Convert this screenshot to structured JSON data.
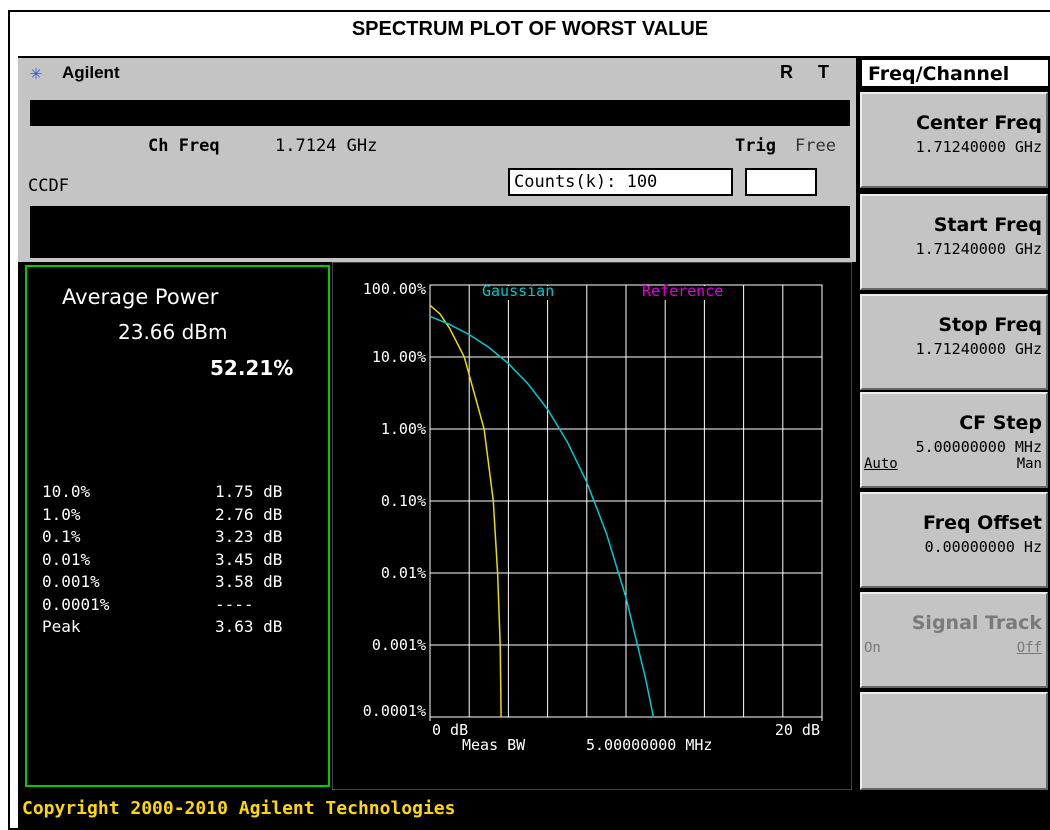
{
  "header": {
    "title": "SPECTRUM PLOT OF WORST VALUE"
  },
  "top_bar": {
    "brand": "Agilent",
    "indicators": [
      "R",
      "T"
    ]
  },
  "status": {
    "ch_freq_label": "Ch Freq",
    "ch_freq": "1.7124 GHz",
    "trig_label": "Trig",
    "trig": "Free",
    "mode": "CCDF",
    "counts": "Counts(k): 100"
  },
  "results": {
    "avg_power_label": "Average Power",
    "avg_power": "23.66 dBm",
    "avg_pct": "52.21%",
    "rows": [
      [
        "10.0%",
        "1.75 dB"
      ],
      [
        "1.0%",
        "2.76 dB"
      ],
      [
        "0.1%",
        "3.23 dB"
      ],
      [
        "0.01%",
        "3.45 dB"
      ],
      [
        "0.001%",
        "3.58 dB"
      ],
      [
        "0.0001%",
        "----"
      ],
      [
        "Peak",
        "3.63 dB"
      ]
    ]
  },
  "chart_data": {
    "type": "line",
    "log_y": true,
    "grid": true,
    "grid_divisions": 10,
    "xlim": [
      0,
      20
    ],
    "xticks": [
      {
        "value": 0,
        "label": "0 dB"
      },
      {
        "value": 20,
        "label": "20 dB"
      }
    ],
    "ylim": [
      0.0001,
      100
    ],
    "yticks": [
      {
        "value": 100,
        "label": "100.00%"
      },
      {
        "value": 10,
        "label": "10.00%"
      },
      {
        "value": 1,
        "label": "1.00%"
      },
      {
        "value": 0.1,
        "label": "0.10%"
      },
      {
        "value": 0.01,
        "label": "0.01%"
      },
      {
        "value": 0.001,
        "label": "0.001%"
      },
      {
        "value": 0.0001,
        "label": "0.0001%"
      }
    ],
    "series": [
      {
        "color": "#e8dc00",
        "x": [
          0,
          0.5,
          1,
          1.75,
          2.76,
          3.23,
          3.45,
          3.58,
          3.63
        ],
        "values": [
          52.21,
          40,
          25,
          10,
          1,
          0.1,
          0.01,
          0.001,
          0.0001
        ]
      },
      {
        "name": "Gaussian",
        "color": "#00c8d0",
        "x": [
          0,
          1,
          2,
          3,
          4,
          5,
          6,
          7,
          8,
          9,
          10,
          11,
          11.4
        ],
        "values": [
          36.79,
          28.39,
          20.5,
          13.6,
          8.11,
          4.23,
          1.87,
          0.666,
          0.182,
          0.0355,
          0.00454,
          0.00034,
          0.0001
        ]
      },
      {
        "name": "Reference",
        "color": "#e000e0",
        "x": [],
        "values": []
      }
    ],
    "annotations": [
      "Meas BW",
      "5.00000000 MHz"
    ]
  },
  "menu": {
    "title": "Freq/Channel",
    "keys": [
      {
        "label": "Center Freq",
        "value": "1.71240000 GHz"
      },
      {
        "label": "Start Freq",
        "value": "1.71240000 GHz"
      },
      {
        "label": "Stop Freq",
        "value": "1.71240000 GHz"
      },
      {
        "label": "CF Step",
        "value": "5.00000000 MHz",
        "options": [
          "Auto",
          "Man"
        ]
      },
      {
        "label": "Freq Offset",
        "value": "0.00000000  Hz"
      },
      {
        "label": "Signal Track",
        "options": [
          "On",
          "Off"
        ]
      }
    ]
  },
  "footer": "Copyright 2000-2010 Agilent Technologies"
}
